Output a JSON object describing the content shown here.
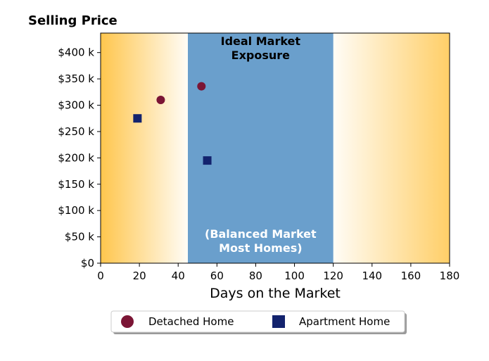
{
  "chart_data": {
    "type": "scatter",
    "title": "Selling Price",
    "xlabel": "Days on the Market",
    "ylabel": "",
    "xlim": [
      0,
      180
    ],
    "ylim": [
      0,
      437000
    ],
    "x_ticks": [
      0,
      20,
      40,
      60,
      80,
      100,
      120,
      140,
      160,
      180
    ],
    "x_tick_labels": [
      "0",
      "20",
      "40",
      "60",
      "80",
      "100",
      "120",
      "140",
      "160",
      "180"
    ],
    "y_ticks": [
      0,
      50000,
      100000,
      150000,
      200000,
      250000,
      300000,
      350000,
      400000
    ],
    "y_tick_labels": [
      "$0",
      "$50 k",
      "$100 k",
      "$150 k",
      "$200 k",
      "$250 k",
      "$300 k",
      "$350 k",
      "$400 k"
    ],
    "band": {
      "x_range": [
        45,
        120
      ],
      "color": "#6a9fcc",
      "title_line1": "Ideal Market",
      "title_line2": "Exposure",
      "sub_line1": "(Balanced Market",
      "sub_line2": "Most Homes)"
    },
    "gradient_color": "#ffc64d",
    "legend_position": "bottom-center",
    "series": [
      {
        "name": "Detached Home",
        "marker": "circle",
        "color": "#7b1535",
        "points": [
          {
            "x": 31,
            "y": 310000
          },
          {
            "x": 52,
            "y": 336000
          }
        ]
      },
      {
        "name": "Apartment Home",
        "marker": "square",
        "color": "#13236e",
        "points": [
          {
            "x": 19,
            "y": 275000
          },
          {
            "x": 55,
            "y": 195000
          }
        ]
      }
    ]
  }
}
